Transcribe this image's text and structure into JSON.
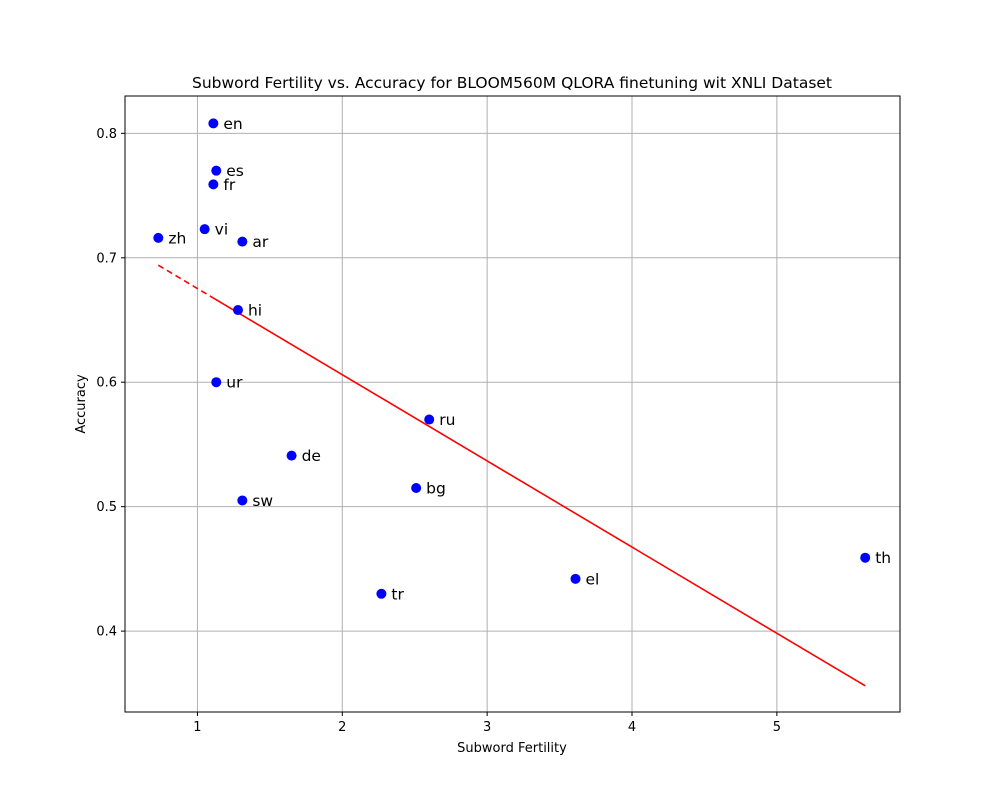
{
  "chart_data": {
    "type": "scatter",
    "title": "Subword Fertility vs. Accuracy for BLOOM560M QLORA finetuning wit XNLI Dataset",
    "xlabel": "Subword Fertility",
    "ylabel": "Accuracy",
    "xlim": [
      0.5,
      5.85
    ],
    "ylim": [
      0.335,
      0.83
    ],
    "xticks": [
      1,
      2,
      3,
      4,
      5
    ],
    "yticks": [
      0.4,
      0.5,
      0.6,
      0.7,
      0.8
    ],
    "xtick_labels": [
      "1",
      "2",
      "3",
      "4",
      "5"
    ],
    "ytick_labels": [
      "0.4",
      "0.5",
      "0.6",
      "0.7",
      "0.8"
    ],
    "grid": true,
    "point_color": "#0000ff",
    "trend_color": "#ff0000",
    "points": [
      {
        "label": "en",
        "x": 1.11,
        "y": 0.808
      },
      {
        "label": "es",
        "x": 1.13,
        "y": 0.77
      },
      {
        "label": "fr",
        "x": 1.11,
        "y": 0.759
      },
      {
        "label": "zh",
        "x": 0.73,
        "y": 0.716
      },
      {
        "label": "vi",
        "x": 1.05,
        "y": 0.723
      },
      {
        "label": "ar",
        "x": 1.31,
        "y": 0.713
      },
      {
        "label": "hi",
        "x": 1.28,
        "y": 0.658
      },
      {
        "label": "ur",
        "x": 1.13,
        "y": 0.6
      },
      {
        "label": "ru",
        "x": 2.6,
        "y": 0.57
      },
      {
        "label": "de",
        "x": 1.65,
        "y": 0.541
      },
      {
        "label": "bg",
        "x": 2.51,
        "y": 0.515
      },
      {
        "label": "sw",
        "x": 1.31,
        "y": 0.505
      },
      {
        "label": "th",
        "x": 5.61,
        "y": 0.459
      },
      {
        "label": "el",
        "x": 3.61,
        "y": 0.442
      },
      {
        "label": "tr",
        "x": 2.27,
        "y": 0.43
      }
    ],
    "trend_line": {
      "x": [
        0.73,
        5.61
      ],
      "y": [
        0.694,
        0.356
      ]
    }
  }
}
